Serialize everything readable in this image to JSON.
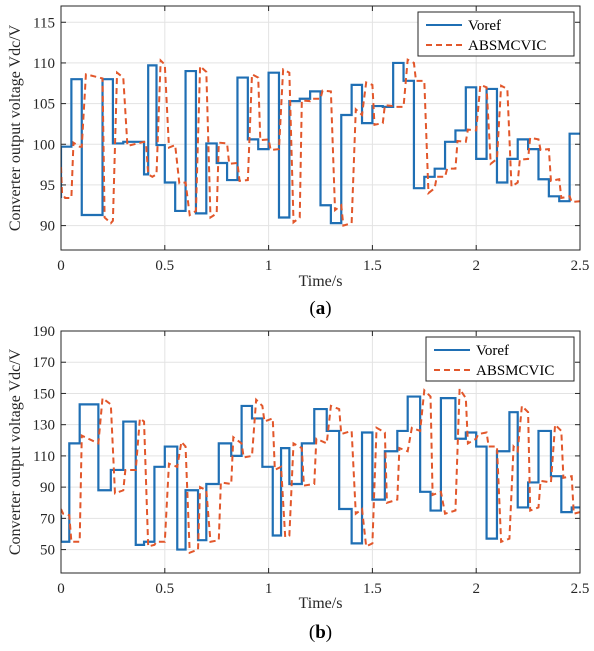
{
  "colors": {
    "voref": "#1f6fb4",
    "absmcvic": "#e2572b",
    "grid": "#e3e3e3",
    "axis": "#262626"
  },
  "chart_data": [
    {
      "type": "line",
      "panel_label": "a",
      "xlabel": "Time/s",
      "ylabel": "Converter output voltage Vdc/V",
      "xlim": [
        0,
        2.5
      ],
      "ylim": [
        87,
        117
      ],
      "xticks": [
        0,
        0.5,
        1,
        1.5,
        2,
        2.5
      ],
      "xtick_labels": [
        "0",
        "0.5",
        "1",
        "1.5",
        "2",
        "2.5"
      ],
      "yticks": [
        90,
        95,
        100,
        105,
        110,
        115
      ],
      "grid": true,
      "legend_position": "top-right",
      "series": [
        {
          "name": "Voref",
          "style": "solid",
          "step": true,
          "x": [
            0,
            0.05,
            0.1,
            0.2,
            0.25,
            0.3,
            0.4,
            0.42,
            0.46,
            0.5,
            0.55,
            0.6,
            0.65,
            0.7,
            0.75,
            0.8,
            0.85,
            0.9,
            0.95,
            1.0,
            1.05,
            1.1,
            1.15,
            1.2,
            1.25,
            1.3,
            1.35,
            1.4,
            1.45,
            1.5,
            1.55,
            1.6,
            1.65,
            1.7,
            1.75,
            1.8,
            1.85,
            1.9,
            1.95,
            2.0,
            2.05,
            2.1,
            2.15,
            2.2,
            2.25,
            2.3,
            2.35,
            2.4,
            2.45,
            2.5
          ],
          "y": [
            93.4,
            99.7,
            108.0,
            91.3,
            108.0,
            100.1,
            100.3,
            96.3,
            109.7,
            99.9,
            95.3,
            91.8,
            109.0,
            91.5,
            100.1,
            97.7,
            95.6,
            108.2,
            100.6,
            99.4,
            108.8,
            91.0,
            105.3,
            105.6,
            106.5,
            92.5,
            90.3,
            103.6,
            107.3,
            102.6,
            104.7,
            104.6,
            110.0,
            107.8,
            94.6,
            96.0,
            97.0,
            100.3,
            101.7,
            107.0,
            98.2,
            106.8,
            95.3,
            98.2,
            100.6,
            99.4,
            95.7,
            93.6,
            93.0,
            101.3
          ]
        },
        {
          "name": "ABSMCVIC",
          "style": "dashed",
          "step": false,
          "x": [
            0,
            0.005,
            0.02,
            0.05,
            0.06,
            0.09,
            0.1,
            0.12,
            0.2,
            0.21,
            0.24,
            0.25,
            0.27,
            0.3,
            0.32,
            0.4,
            0.41,
            0.42,
            0.44,
            0.46,
            0.48,
            0.5,
            0.52,
            0.55,
            0.57,
            0.6,
            0.62,
            0.65,
            0.67,
            0.7,
            0.72,
            0.75,
            0.76,
            0.8,
            0.81,
            0.85,
            0.86,
            0.9,
            0.92,
            0.95,
            0.96,
            1.0,
            1.01,
            1.05,
            1.07,
            1.1,
            1.12,
            1.15,
            1.16,
            1.2,
            1.21,
            1.25,
            1.26,
            1.3,
            1.32,
            1.35,
            1.36,
            1.4,
            1.42,
            1.45,
            1.47,
            1.5,
            1.51,
            1.55,
            1.56,
            1.6,
            1.61,
            1.65,
            1.67,
            1.7,
            1.71,
            1.75,
            1.77,
            1.8,
            1.81,
            1.85,
            1.86,
            1.9,
            1.91,
            1.95,
            1.96,
            2.0,
            2.02,
            2.05,
            2.07,
            2.1,
            2.12,
            2.15,
            2.17,
            2.2,
            2.21,
            2.25,
            2.26,
            2.3,
            2.31,
            2.35,
            2.36,
            2.4,
            2.41,
            2.45,
            2.46,
            2.5
          ],
          "y": [
            97.2,
            94.0,
            93.4,
            93.4,
            100.2,
            99.7,
            99.7,
            108.6,
            108.1,
            91.0,
            90.3,
            90.6,
            108.8,
            108.2,
            99.8,
            100.3,
            100.0,
            96.3,
            96.0,
            96.3,
            110.3,
            109.8,
            99.6,
            99.9,
            95.2,
            95.3,
            91.3,
            91.8,
            109.6,
            108.9,
            91.0,
            91.5,
            100.2,
            100.1,
            97.6,
            97.7,
            95.5,
            95.6,
            108.6,
            108.2,
            100.5,
            100.6,
            99.3,
            99.4,
            109.2,
            108.8,
            90.4,
            91.0,
            105.4,
            105.3,
            105.6,
            105.6,
            106.6,
            106.5,
            91.9,
            92.5,
            90.0,
            90.3,
            104.3,
            103.6,
            107.6,
            107.3,
            102.4,
            102.6,
            104.8,
            104.7,
            104.6,
            104.6,
            110.4,
            110.0,
            107.8,
            107.8,
            94.0,
            94.6,
            96.0,
            96.0,
            97.0,
            97.0,
            100.4,
            100.3,
            101.8,
            101.7,
            107.3,
            107.0,
            97.6,
            98.2,
            107.2,
            106.8,
            94.8,
            95.3,
            98.1,
            98.2,
            100.8,
            100.6,
            99.3,
            99.4,
            95.5,
            95.7,
            93.4,
            93.6,
            92.9,
            93.0
          ]
        }
      ]
    },
    {
      "type": "line",
      "panel_label": "b",
      "xlabel": "Time/s",
      "ylabel": "Converter output voltage Vdc/V",
      "xlim": [
        0,
        2.5
      ],
      "ylim": [
        35,
        190
      ],
      "xticks": [
        0,
        0.5,
        1,
        1.5,
        2,
        2.5
      ],
      "xtick_labels": [
        "0",
        "0.5",
        "1",
        "1.5",
        "2",
        "2.5"
      ],
      "yticks": [
        50,
        70,
        90,
        110,
        130,
        150,
        170,
        190
      ],
      "grid": true,
      "legend_position": "top-right",
      "series": [
        {
          "name": "Voref",
          "style": "solid",
          "step": true,
          "x": [
            0,
            0.04,
            0.09,
            0.18,
            0.24,
            0.3,
            0.36,
            0.4,
            0.45,
            0.5,
            0.56,
            0.6,
            0.66,
            0.7,
            0.76,
            0.82,
            0.87,
            0.92,
            0.97,
            1.02,
            1.06,
            1.1,
            1.16,
            1.22,
            1.28,
            1.34,
            1.4,
            1.45,
            1.5,
            1.56,
            1.62,
            1.67,
            1.73,
            1.78,
            1.83,
            1.9,
            1.95,
            2.0,
            2.05,
            2.1,
            2.16,
            2.2,
            2.25,
            2.3,
            2.36,
            2.41,
            2.46,
            2.5
          ],
          "y": [
            72,
            55,
            118,
            143,
            88,
            101,
            132,
            53,
            55,
            103,
            116,
            50,
            88,
            56,
            92,
            118,
            110,
            142,
            134,
            103,
            59,
            115,
            92,
            118,
            140,
            126,
            76,
            54,
            125,
            82,
            113,
            126,
            148,
            87,
            75,
            147,
            121,
            125,
            116,
            57,
            113,
            138,
            77,
            93,
            126,
            97,
            74,
            77
          ]
        },
        {
          "name": "ABSMCVIC",
          "style": "dashed",
          "step": false,
          "x": [
            0,
            0.01,
            0.04,
            0.05,
            0.09,
            0.1,
            0.18,
            0.2,
            0.24,
            0.26,
            0.3,
            0.31,
            0.36,
            0.38,
            0.4,
            0.42,
            0.45,
            0.46,
            0.5,
            0.52,
            0.56,
            0.58,
            0.6,
            0.62,
            0.66,
            0.67,
            0.7,
            0.72,
            0.76,
            0.77,
            0.82,
            0.83,
            0.87,
            0.88,
            0.92,
            0.94,
            0.97,
            0.98,
            1.02,
            1.03,
            1.06,
            1.08,
            1.1,
            1.12,
            1.16,
            1.17,
            1.22,
            1.23,
            1.28,
            1.3,
            1.34,
            1.35,
            1.4,
            1.42,
            1.45,
            1.47,
            1.5,
            1.52,
            1.56,
            1.57,
            1.62,
            1.63,
            1.67,
            1.69,
            1.73,
            1.75,
            1.78,
            1.79,
            1.83,
            1.85,
            1.9,
            1.92,
            1.95,
            1.96,
            2.0,
            2.01,
            2.05,
            2.06,
            2.1,
            2.12,
            2.16,
            2.18,
            2.2,
            2.22,
            2.25,
            2.26,
            2.3,
            2.31,
            2.36,
            2.38,
            2.41,
            2.42,
            2.46,
            2.47,
            2.5
          ],
          "y": [
            76,
            73,
            72,
            55,
            55,
            123,
            118,
            147,
            143,
            86,
            88,
            101,
            101,
            134,
            132,
            52,
            53,
            55,
            55,
            105,
            103,
            119,
            116,
            48,
            50,
            90,
            88,
            55,
            56,
            93,
            92,
            122,
            118,
            109,
            110,
            146,
            142,
            132,
            134,
            101,
            103,
            58,
            59,
            118,
            115,
            91,
            92,
            121,
            118,
            142,
            140,
            124,
            126,
            73,
            76,
            52,
            54,
            128,
            125,
            80,
            82,
            115,
            113,
            128,
            126,
            152,
            148,
            85,
            87,
            73,
            75,
            153,
            147,
            118,
            121,
            124,
            125,
            116,
            116,
            55,
            57,
            116,
            113,
            142,
            138,
            75,
            77,
            94,
            93,
            130,
            126,
            96,
            97,
            73,
            74
          ]
        }
      ]
    }
  ]
}
